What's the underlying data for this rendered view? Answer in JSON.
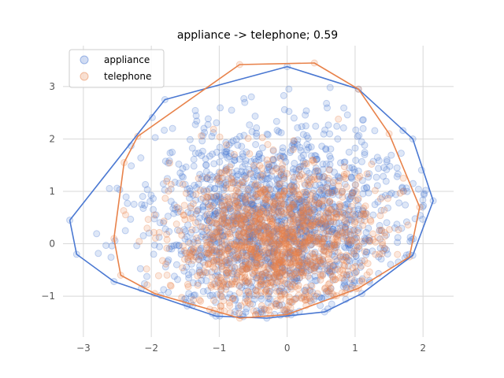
{
  "chart_data": {
    "type": "scatter",
    "title": "appliance -> telephone; 0.59",
    "xlabel": "",
    "ylabel": "",
    "xlim": [
      -3.3,
      2.45
    ],
    "ylim": [
      -1.78,
      3.78
    ],
    "xticks": [
      -3,
      -2,
      -1,
      0,
      1,
      2
    ],
    "yticks": [
      -1,
      0,
      1,
      2,
      3
    ],
    "xtick_labels": [
      "−3",
      "−2",
      "−1",
      "0",
      "1",
      "2"
    ],
    "ytick_labels": [
      "−1",
      "0",
      "1",
      "2",
      "3"
    ],
    "grid": true,
    "legend_position": "top-left",
    "series": [
      {
        "name": "appliance",
        "color": "#4a78d2",
        "hull": [
          [
            -3.2,
            0.45
          ],
          [
            -3.1,
            -0.2
          ],
          [
            -2.55,
            -0.72
          ],
          [
            -1.05,
            -1.38
          ],
          [
            -0.3,
            -1.42
          ],
          [
            0.55,
            -1.3
          ],
          [
            1.1,
            -0.95
          ],
          [
            1.85,
            -0.22
          ],
          [
            2.15,
            0.82
          ],
          [
            1.85,
            2.0
          ],
          [
            1.05,
            2.95
          ],
          [
            0.0,
            3.38
          ],
          [
            -1.8,
            2.75
          ],
          [
            -3.2,
            0.45
          ]
        ],
        "cloud": {
          "center": [
            -0.15,
            0.35
          ],
          "spread": [
            0.95,
            0.95
          ],
          "count": 1600
        }
      },
      {
        "name": "telephone",
        "color": "#e8824a",
        "hull": [
          [
            -2.55,
            0.1
          ],
          [
            -2.45,
            -0.6
          ],
          [
            -1.95,
            -0.95
          ],
          [
            -0.7,
            -1.42
          ],
          [
            0.0,
            -1.35
          ],
          [
            1.05,
            -0.85
          ],
          [
            1.8,
            -0.25
          ],
          [
            1.95,
            0.7
          ],
          [
            1.5,
            2.1
          ],
          [
            1.05,
            2.95
          ],
          [
            0.4,
            3.45
          ],
          [
            -0.7,
            3.42
          ],
          [
            -2.2,
            2.05
          ],
          [
            -2.4,
            1.55
          ],
          [
            -2.55,
            0.1
          ]
        ],
        "cloud": {
          "center": [
            -0.15,
            0.0
          ],
          "spread": [
            0.75,
            0.72
          ],
          "count": 1300
        }
      }
    ]
  }
}
